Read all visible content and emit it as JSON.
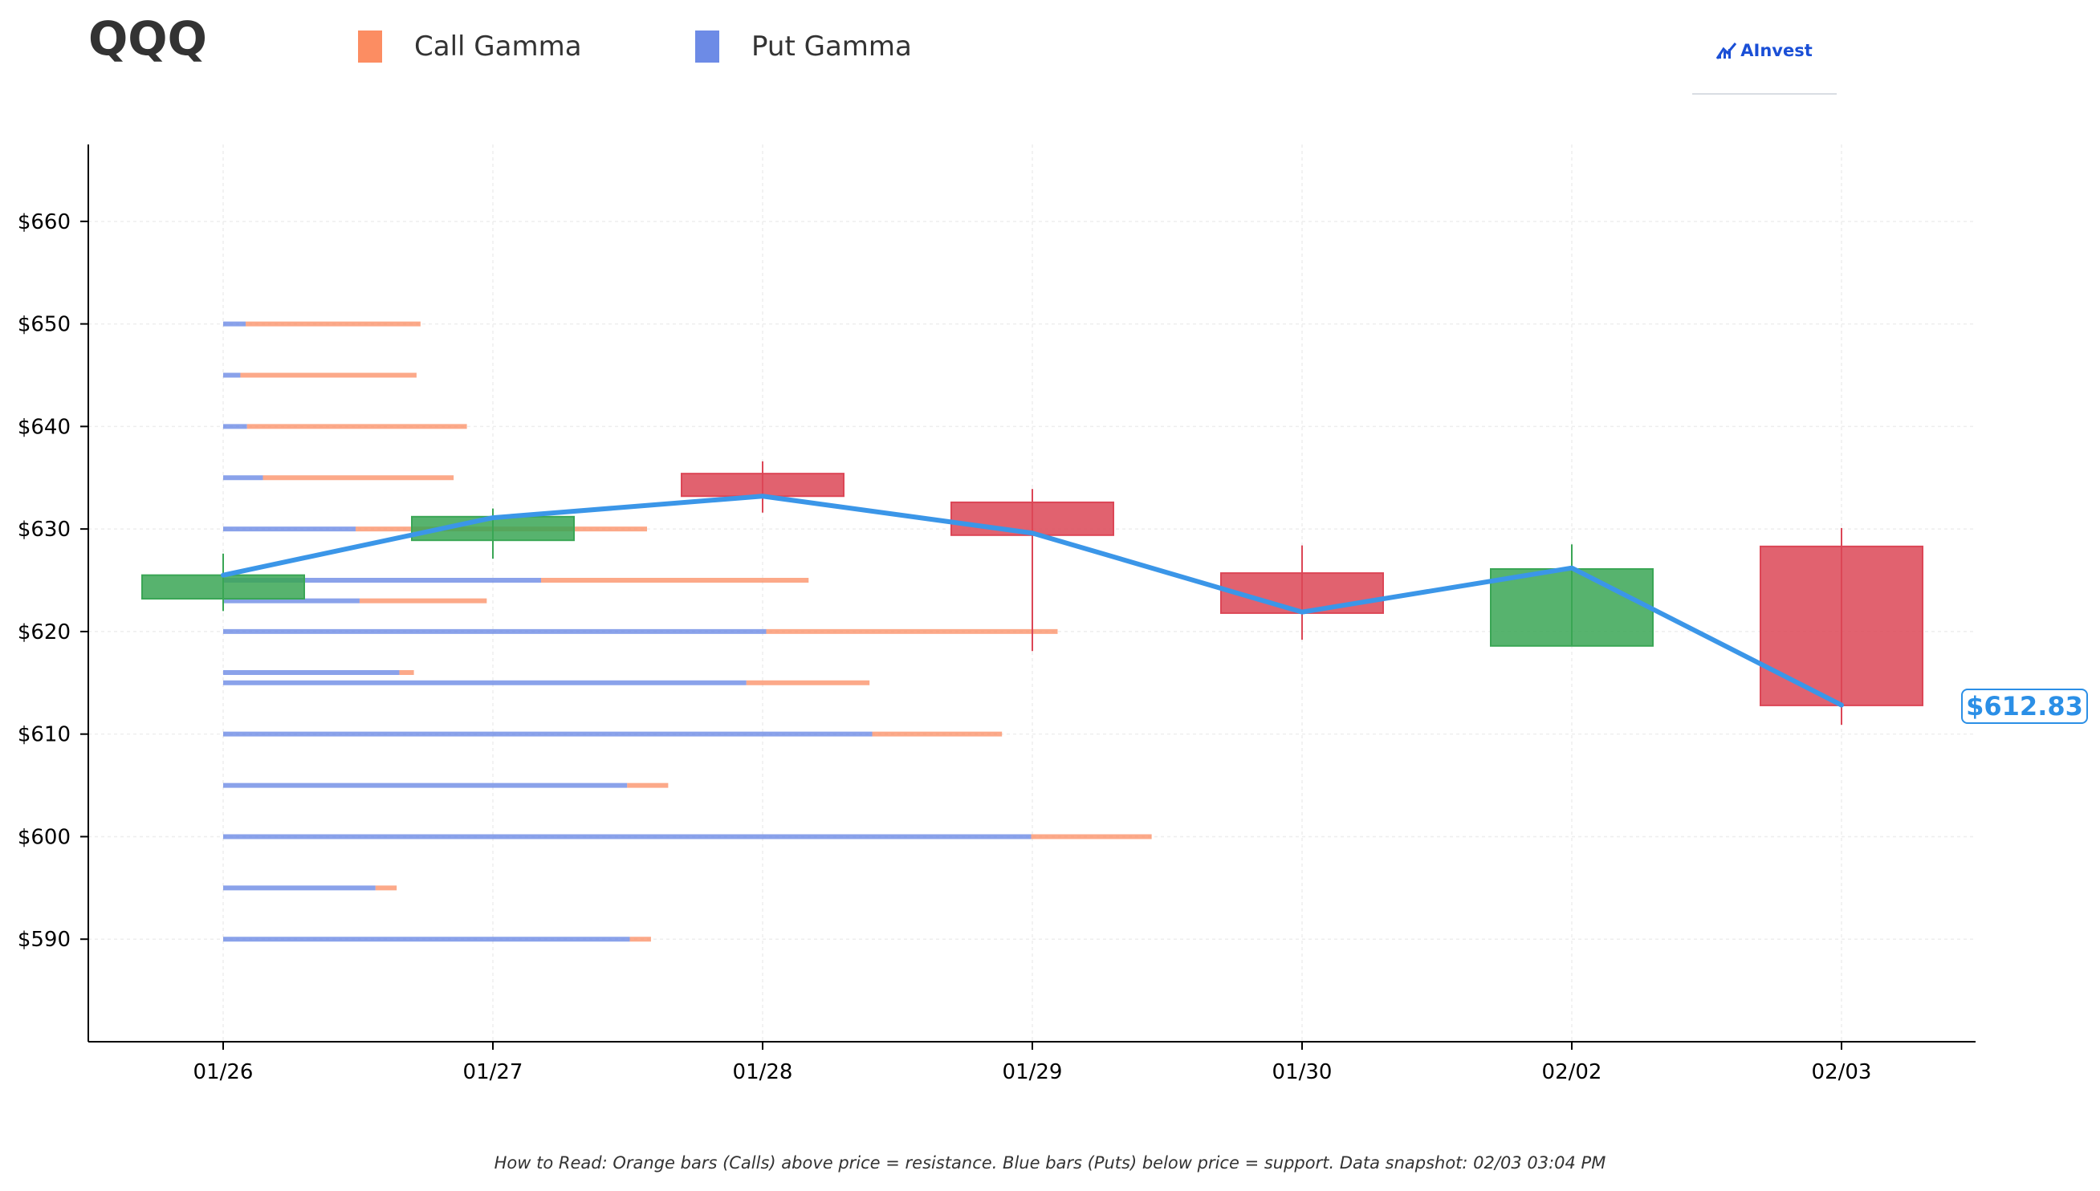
{
  "header": {
    "ticker": "QQQ",
    "logo_text": "AInvest"
  },
  "legend": {
    "call_label": "Call Gamma",
    "put_label": "Put Gamma"
  },
  "footer": {
    "note": "How to Read: Orange bars (Calls) above price = resistance. Blue bars (Puts) below price = support. Data snapshot: 02/03 03:04 PM"
  },
  "colors": {
    "call": "#fc8d62",
    "put": "#6d8be6",
    "up_candle": "#3aa655",
    "down_candle": "#dc4656",
    "price_line": "#3b96e8",
    "axis": "#000000",
    "grid": "#eeeeee"
  },
  "chart_data": {
    "type": "bar",
    "ylim": [
      580,
      667.5
    ],
    "y_ticks": [
      {
        "value": 590,
        "label": "$590"
      },
      {
        "value": 600,
        "label": "$600"
      },
      {
        "value": 610,
        "label": "$610"
      },
      {
        "value": 620,
        "label": "$620"
      },
      {
        "value": 630,
        "label": "$630"
      },
      {
        "value": 640,
        "label": "$640"
      },
      {
        "value": 650,
        "label": "$650"
      },
      {
        "value": 660,
        "label": "$660"
      }
    ],
    "categories": [
      "01/26",
      "01/27",
      "01/28",
      "01/29",
      "01/30",
      "02/02",
      "02/03"
    ],
    "candles": [
      {
        "date": "01/26",
        "open": 623.2,
        "high": 627.6,
        "low": 622.0,
        "close": 625.5
      },
      {
        "date": "01/27",
        "open": 628.9,
        "high": 632.0,
        "low": 627.1,
        "close": 631.2
      },
      {
        "date": "01/28",
        "open": 635.4,
        "high": 636.6,
        "low": 631.6,
        "close": 633.2
      },
      {
        "date": "01/29",
        "open": 632.6,
        "high": 633.9,
        "low": 618.1,
        "close": 629.4
      },
      {
        "date": "01/30",
        "open": 625.7,
        "high": 628.4,
        "low": 619.2,
        "close": 621.8
      },
      {
        "date": "02/02",
        "open": 618.6,
        "high": 628.5,
        "low": 618.6,
        "close": 626.1
      },
      {
        "date": "02/03",
        "open": 628.3,
        "high": 630.1,
        "low": 610.9,
        "close": 612.8
      }
    ],
    "price_line": {
      "dates": [
        "01/26",
        "01/27",
        "01/28",
        "01/29",
        "01/30",
        "02/02",
        "02/03"
      ],
      "values": [
        625.5,
        631.1,
        633.2,
        629.6,
        621.9,
        626.2,
        612.83
      ]
    },
    "last_price_label": "$612.83",
    "gamma_levels": [
      {
        "strike": 650,
        "put": 0.17,
        "call": 1.32
      },
      {
        "strike": 645,
        "put": 0.13,
        "call": 1.33
      },
      {
        "strike": 640,
        "put": 0.18,
        "call": 1.66
      },
      {
        "strike": 635,
        "put": 0.3,
        "call": 1.44
      },
      {
        "strike": 630,
        "put": 1.0,
        "call": 2.2
      },
      {
        "strike": 625,
        "put": 2.4,
        "call": 2.02
      },
      {
        "strike": 623,
        "put": 1.03,
        "call": 0.96
      },
      {
        "strike": 620,
        "put": 4.1,
        "call": 2.2
      },
      {
        "strike": 616,
        "put": 1.33,
        "call": 0.11
      },
      {
        "strike": 615,
        "put": 3.95,
        "call": 0.93
      },
      {
        "strike": 610,
        "put": 4.9,
        "call": 0.98
      },
      {
        "strike": 605,
        "put": 3.05,
        "call": 0.31
      },
      {
        "strike": 600,
        "put": 6.1,
        "call": 0.91
      },
      {
        "strike": 595,
        "put": 1.15,
        "call": 0.16
      },
      {
        "strike": 590,
        "put": 3.07,
        "call": 0.16
      }
    ]
  }
}
